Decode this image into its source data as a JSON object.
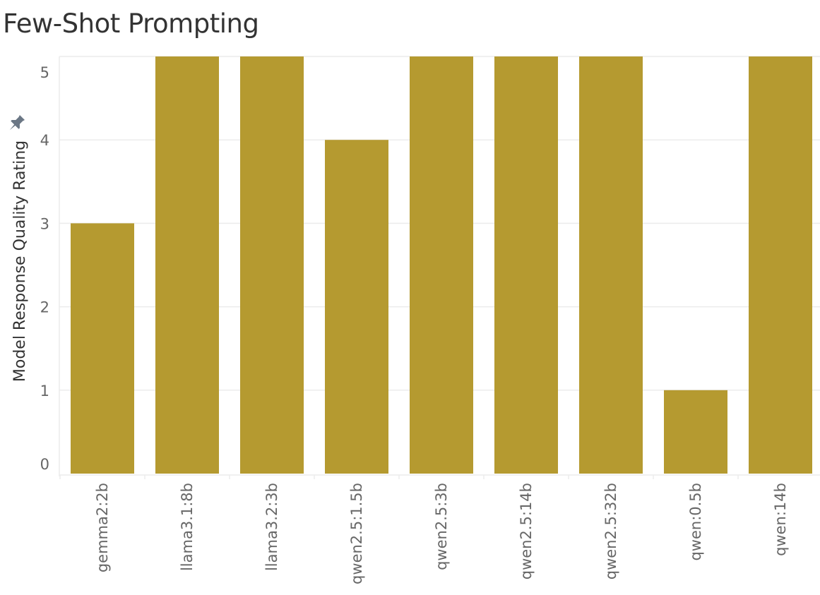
{
  "chart_data": {
    "type": "bar",
    "title": "Few-Shot Prompting",
    "ylabel": "Model Response Quality Rating",
    "xlabel": "",
    "categories": [
      "gemma2:2b",
      "llama3.1:8b",
      "llama3.2:3b",
      "qwen2.5:1.5b",
      "qwen2.5:3b",
      "qwen2.5:14b",
      "qwen2.5:32b",
      "qwen:0.5b",
      "qwen:14b"
    ],
    "values": [
      3,
      5,
      5,
      4,
      5,
      5,
      5,
      1,
      5
    ],
    "ylim": [
      0,
      5
    ],
    "yticks": [
      0,
      1,
      2,
      3,
      4,
      5
    ],
    "grid": true,
    "legend": "none"
  },
  "colors": {
    "bar": "#b59a30",
    "grid": "#ececec",
    "pin_icon": "#6b7785"
  },
  "icons": {
    "axis_pin": "pin-icon"
  }
}
